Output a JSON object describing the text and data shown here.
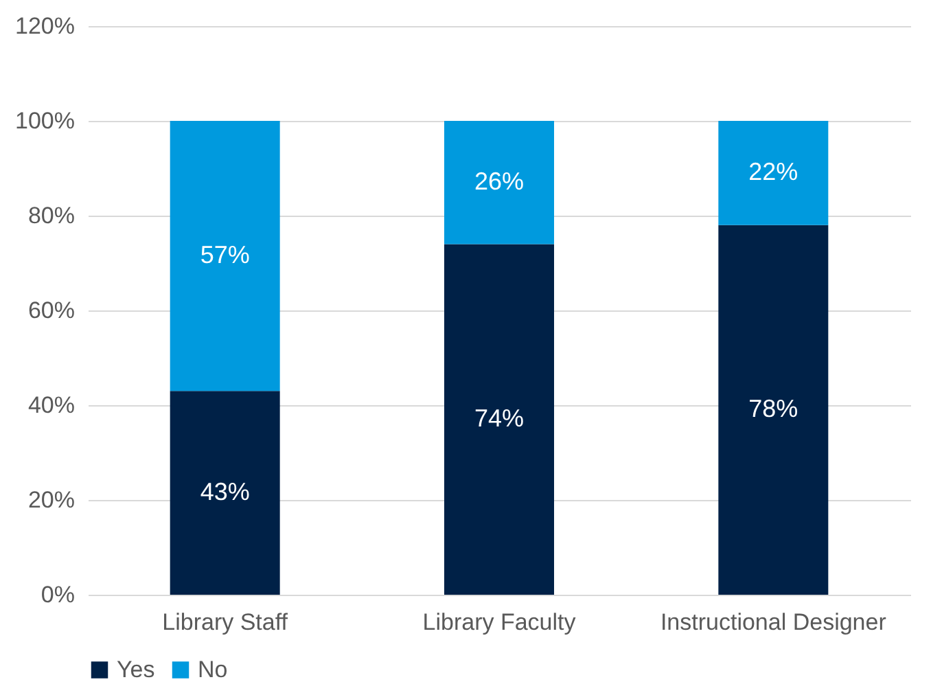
{
  "chart_data": {
    "type": "bar",
    "stacked": true,
    "categories": [
      "Library Staff",
      "Library Faculty",
      "Instructional Designer"
    ],
    "series": [
      {
        "name": "Yes",
        "color": "#002147",
        "values": [
          43,
          74,
          78
        ],
        "value_labels": [
          "43%",
          "74%",
          "78%"
        ]
      },
      {
        "name": "No",
        "color": "#009ade",
        "values": [
          57,
          26,
          22
        ],
        "value_labels": [
          "57%",
          "26%",
          "22%"
        ]
      }
    ],
    "ylim": [
      0,
      120
    ],
    "yticks": [
      {
        "value": 0,
        "label": "0%"
      },
      {
        "value": 20,
        "label": "20%"
      },
      {
        "value": 40,
        "label": "40%"
      },
      {
        "value": 60,
        "label": "60%"
      },
      {
        "value": 80,
        "label": "80%"
      },
      {
        "value": 100,
        "label": "100%"
      },
      {
        "value": 120,
        "label": "120%"
      }
    ],
    "grid": "y",
    "legend": "bottom"
  }
}
